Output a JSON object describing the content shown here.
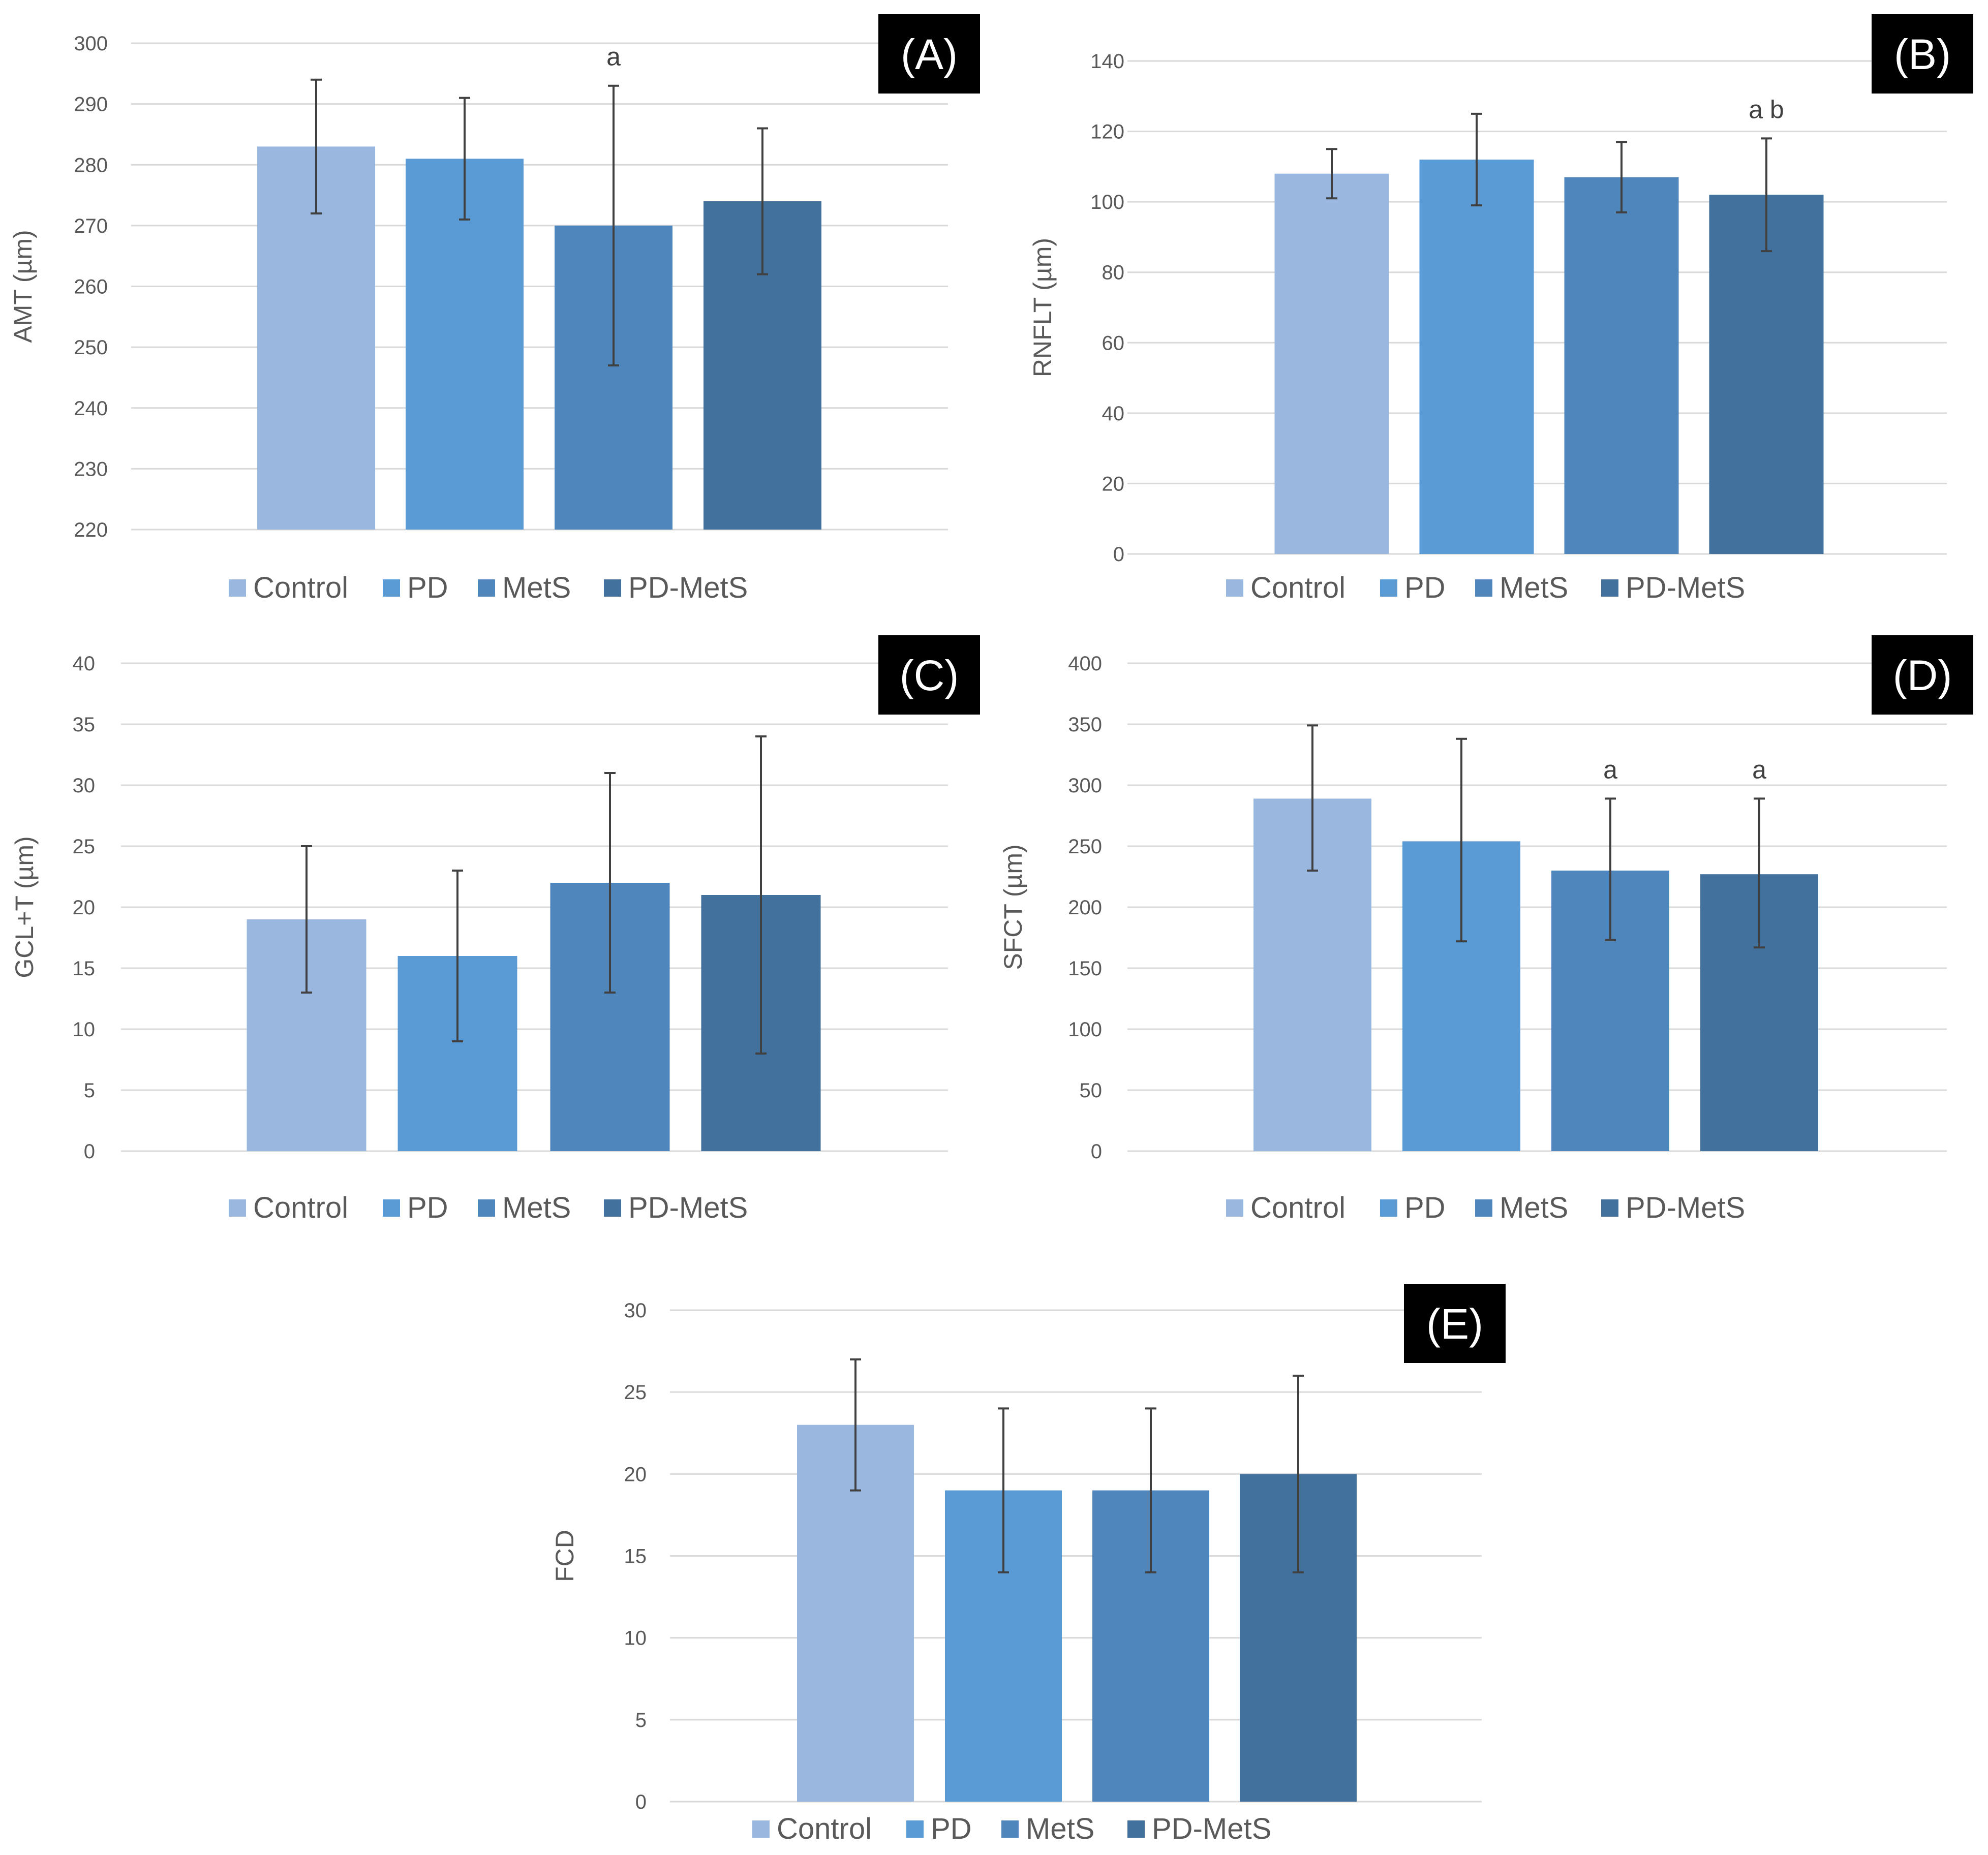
{
  "colors": {
    "Control": "#9ab8df",
    "PD": "#5b9bd5",
    "MetS": "#4f86bb",
    "PD-MetS": "#41719c",
    "grid": "#d9d9d9",
    "text": "#595959",
    "panel_bg": "#000000"
  },
  "chart_data": [
    {
      "type": "bar",
      "panel": "(A)",
      "ylabel": "AMT (µm)",
      "ylim": [
        220,
        300
      ],
      "yticks": [
        220,
        230,
        240,
        250,
        260,
        270,
        280,
        290,
        300
      ],
      "categories": [
        "Control",
        "PD",
        "MetS",
        "PD-MetS"
      ],
      "values": [
        283,
        281,
        270,
        274
      ],
      "errors": [
        [
          272,
          294
        ],
        [
          271,
          291
        ],
        [
          247,
          293
        ],
        [
          262,
          286
        ]
      ],
      "annotations": [
        "",
        "",
        "a",
        ""
      ],
      "legend": [
        "Control",
        "PD",
        "MetS",
        "PD-MetS"
      ],
      "legend_position": "bottom"
    },
    {
      "type": "bar",
      "panel": "(B)",
      "ylabel": "RNFLT (µm)",
      "ylim": [
        0,
        140
      ],
      "yticks": [
        0,
        20,
        40,
        60,
        80,
        100,
        120,
        140
      ],
      "categories": [
        "Control",
        "PD",
        "MetS",
        "PD-MetS"
      ],
      "values": [
        108,
        112,
        107,
        102
      ],
      "errors": [
        [
          101,
          115
        ],
        [
          99,
          125
        ],
        [
          97,
          117
        ],
        [
          86,
          118
        ]
      ],
      "annotations": [
        "",
        "",
        "",
        "a b"
      ],
      "legend": [
        "Control",
        "PD",
        "MetS",
        "PD-MetS"
      ],
      "legend_position": "bottom"
    },
    {
      "type": "bar",
      "panel": "(C)",
      "ylabel": "GCL+T (µm)",
      "ylim": [
        0,
        40
      ],
      "yticks": [
        0,
        5,
        10,
        15,
        20,
        25,
        30,
        35,
        40
      ],
      "categories": [
        "Control",
        "PD",
        "MetS",
        "PD-MetS"
      ],
      "values": [
        19,
        16,
        22,
        21
      ],
      "errors": [
        [
          13,
          25
        ],
        [
          9,
          23
        ],
        [
          13,
          31
        ],
        [
          8,
          34
        ]
      ],
      "annotations": [
        "",
        "",
        "",
        ""
      ],
      "legend": [
        "Control",
        "PD",
        "MetS",
        "PD-MetS"
      ],
      "legend_position": "bottom"
    },
    {
      "type": "bar",
      "panel": "(D)",
      "ylabel": "SFCT (µm)",
      "ylim": [
        0,
        400
      ],
      "yticks": [
        0,
        50,
        100,
        150,
        200,
        250,
        300,
        350,
        400
      ],
      "categories": [
        "Control",
        "PD",
        "MetS",
        "PD-MetS"
      ],
      "values": [
        289,
        254,
        230,
        227
      ],
      "errors": [
        [
          230,
          349
        ],
        [
          172,
          338
        ],
        [
          173,
          289
        ],
        [
          167,
          289
        ]
      ],
      "annotations": [
        "",
        "",
        "a",
        "a"
      ],
      "legend": [
        "Control",
        "PD",
        "MetS",
        "PD-MetS"
      ],
      "legend_position": "bottom"
    },
    {
      "type": "bar",
      "panel": "(E)",
      "ylabel": "FCD",
      "ylim": [
        0,
        30
      ],
      "yticks": [
        0,
        5,
        10,
        15,
        20,
        25,
        30
      ],
      "categories": [
        "Control",
        "PD",
        "MetS",
        "PD-MetS"
      ],
      "values": [
        23,
        19,
        19,
        20
      ],
      "errors": [
        [
          19,
          27
        ],
        [
          14,
          24
        ],
        [
          14,
          24
        ],
        [
          14,
          26
        ]
      ],
      "annotations": [
        "",
        "",
        "",
        ""
      ],
      "legend": [
        "Control",
        "PD",
        "MetS",
        "PD-MetS"
      ],
      "legend_position": "bottom"
    }
  ]
}
